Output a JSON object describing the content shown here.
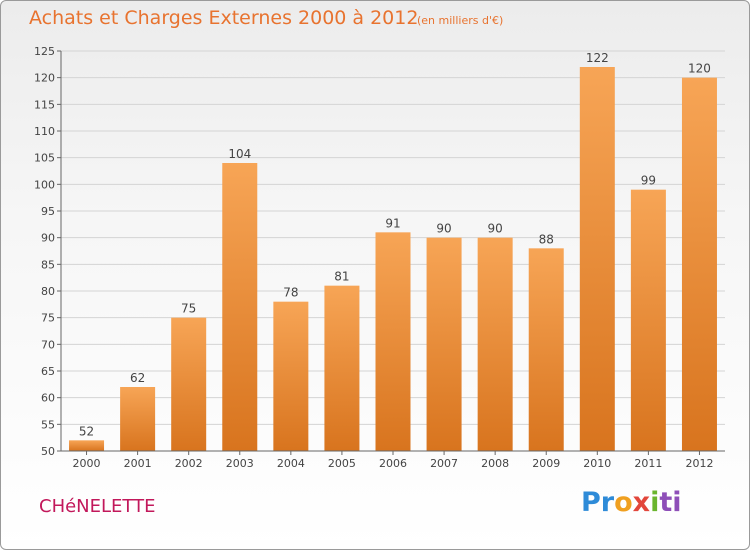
{
  "header": {
    "title": "Achats et Charges Externes 2000 à 2012",
    "subtitle": "(en milliers d'€)"
  },
  "footer": {
    "commune": "CHéNELETTE",
    "logo_parts": [
      "Pr",
      "o",
      "x",
      "i",
      "ti"
    ]
  },
  "colors": {
    "bar_light": "#f7a556",
    "bar_dark": "#d8741e",
    "title": "#e8732f",
    "commune": "#c2185b"
  },
  "chart_data": {
    "type": "bar",
    "categories": [
      "2000",
      "2001",
      "2002",
      "2003",
      "2004",
      "2005",
      "2006",
      "2007",
      "2008",
      "2009",
      "2010",
      "2011",
      "2012"
    ],
    "values": [
      52,
      62,
      75,
      104,
      78,
      81,
      91,
      90,
      90,
      88,
      122,
      99,
      120
    ],
    "ylim": [
      50,
      125
    ],
    "yticks": [
      50,
      55,
      60,
      65,
      70,
      75,
      80,
      85,
      90,
      95,
      100,
      105,
      110,
      115,
      120,
      125
    ],
    "grid": true,
    "legend": "none"
  }
}
